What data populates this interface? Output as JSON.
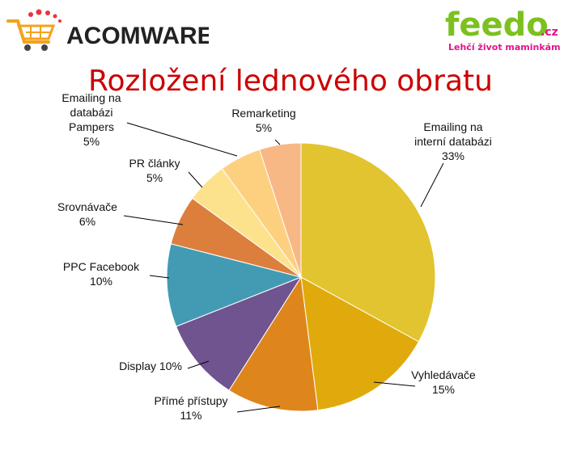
{
  "header": {
    "left_logo_text": "ACOMWARE",
    "right_logo_text": "feedo",
    "right_logo_suffix": ".cz",
    "right_logo_tagline": "Lehčí život maminkám"
  },
  "colors": {
    "title": "#cc0000",
    "feedo_green": "#7cc11f",
    "feedo_pink": "#e3138a"
  },
  "chart_data": {
    "type": "pie",
    "title": "Rozložení lednového obratu",
    "start_angle_deg": 0,
    "direction": "clockwise",
    "slices": [
      {
        "label_lines": [
          "Emailing na",
          "interní databázi"
        ],
        "value_text": "33%",
        "value": 33,
        "color": "#e2c430"
      },
      {
        "label_lines": [
          "Vyhledávače"
        ],
        "value_text": "15%",
        "value": 15,
        "color": "#e0aa0c"
      },
      {
        "label_lines": [
          "Přímé přístupy"
        ],
        "value_text": "11%",
        "value": 11,
        "color": "#de861b"
      },
      {
        "label_lines": [
          "Display 10%"
        ],
        "value_text": "",
        "value": 10,
        "color": "#6f5490"
      },
      {
        "label_lines": [
          "PPC Facebook"
        ],
        "value_text": "10%",
        "value": 10,
        "color": "#429bb3"
      },
      {
        "label_lines": [
          "Srovnávače"
        ],
        "value_text": "6%",
        "value": 6,
        "color": "#dc7f3d"
      },
      {
        "label_lines": [
          "PR články"
        ],
        "value_text": "5%",
        "value": 5,
        "color": "#fde28d"
      },
      {
        "label_lines": [
          "Emailing na",
          "databázi",
          "Pampers"
        ],
        "value_text": "5%",
        "value": 5,
        "color": "#fdd080"
      },
      {
        "label_lines": [
          "Remarketing"
        ],
        "value_text": "5%",
        "value": 5,
        "color": "#f8b886"
      }
    ]
  }
}
